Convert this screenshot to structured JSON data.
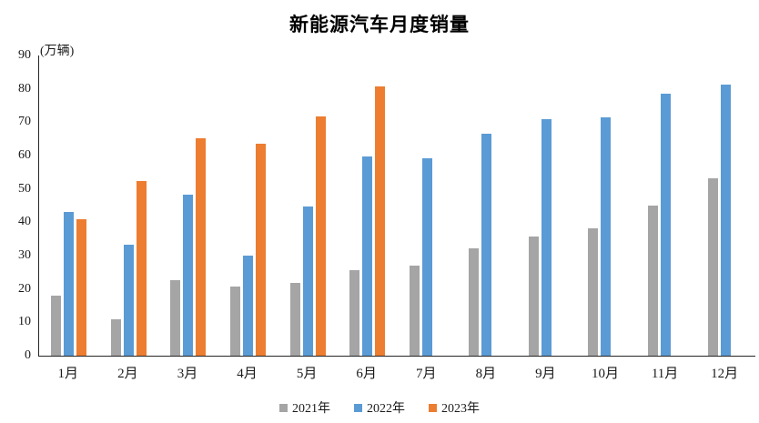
{
  "chart_data": {
    "type": "bar",
    "title": "新能源汽车月度销量",
    "ylabel": "(万辆)",
    "xlabel": "",
    "categories": [
      "1月",
      "2月",
      "3月",
      "4月",
      "5月",
      "6月",
      "7月",
      "8月",
      "9月",
      "10月",
      "11月",
      "12月"
    ],
    "series": [
      {
        "name": "2021年",
        "color": "#A5A5A5",
        "values": [
          17.9,
          11.0,
          22.6,
          20.6,
          21.7,
          25.6,
          27.1,
          32.1,
          35.7,
          38.3,
          45.0,
          53.1
        ]
      },
      {
        "name": "2022年",
        "color": "#5B9BD5",
        "values": [
          43.1,
          33.4,
          48.4,
          29.9,
          44.7,
          59.6,
          59.3,
          66.6,
          70.8,
          71.4,
          78.6,
          81.4
        ]
      },
      {
        "name": "2023年",
        "color": "#ED7D31",
        "values": [
          40.8,
          52.5,
          65.3,
          63.6,
          71.7,
          80.6,
          null,
          null,
          null,
          null,
          null,
          null
        ]
      }
    ],
    "ylim": [
      0,
      90
    ],
    "ytick_interval": 10,
    "grid": false,
    "legend_position": "bottom",
    "axis_color": "#262626"
  }
}
